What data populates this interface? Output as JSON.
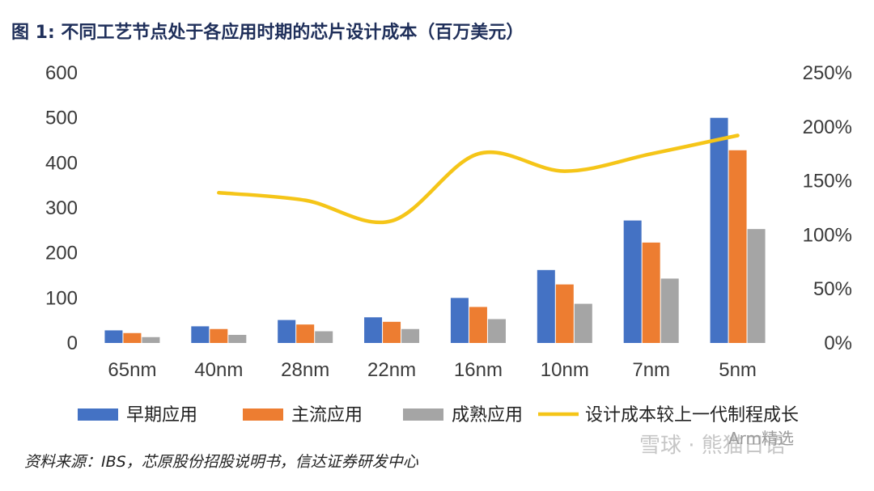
{
  "title": "图 1: 不同工艺节点处于各应用时期的芯片设计成本（百万美元）",
  "source": "资料来源：IBS，芯原股份招股说明书，信达证券研发中心",
  "watermark": "雪球 · 熊猫日语",
  "watermark_account": "Arm精选",
  "colors": {
    "early": "#4472c4",
    "mainstream": "#ed7d31",
    "mature": "#a5a5a5",
    "growth": "#f5c518"
  },
  "chart_data": {
    "type": "bar",
    "title": "不同工艺节点处于各应用时期的芯片设计成本（百万美元）",
    "categories": [
      "65nm",
      "40nm",
      "28nm",
      "22nm",
      "16nm",
      "10nm",
      "7nm",
      "5nm"
    ],
    "series": [
      {
        "name": "早期应用",
        "values": [
          28,
          37,
          51,
          57,
          100,
          162,
          272,
          500
        ]
      },
      {
        "name": "主流应用",
        "values": [
          22,
          31,
          41,
          47,
          80,
          130,
          223,
          428
        ]
      },
      {
        "name": "成熟应用",
        "values": [
          13,
          18,
          26,
          31,
          53,
          87,
          143,
          253
        ]
      }
    ],
    "line_series": {
      "name": "设计成本较上一代制程成长",
      "axis": "right",
      "values": [
        null,
        139,
        132,
        113,
        175,
        159,
        175,
        192
      ]
    },
    "left_axis": {
      "ticks": [
        "0",
        "100",
        "200",
        "300",
        "400",
        "500",
        "600"
      ],
      "ylim": [
        0,
        600
      ]
    },
    "right_axis": {
      "ticks": [
        "0%",
        "50%",
        "100%",
        "150%",
        "200%",
        "250%"
      ],
      "ylim": [
        0,
        250
      ]
    },
    "legend": [
      "早期应用",
      "主流应用",
      "成熟应用",
      "设计成本较上一代制程成长"
    ],
    "legend_position": "bottom"
  }
}
